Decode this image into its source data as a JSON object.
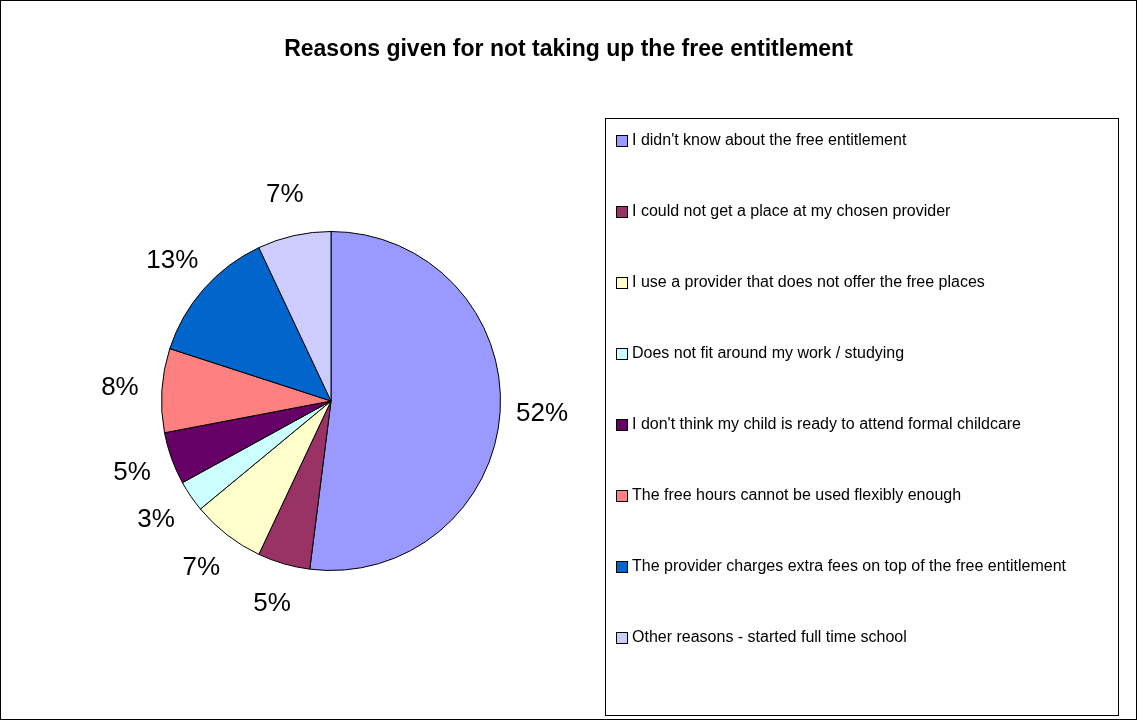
{
  "chart_data": {
    "type": "pie",
    "title": "Reasons given for not taking up the free entitlement",
    "categories": [
      "I didn't know about the free entitlement",
      "I could not get a place at my chosen provider",
      "I use a provider that does not offer the free places",
      "Does not fit around my work / studying",
      "I don't think my child is ready to attend formal childcare",
      "The free hours cannot be used flexibly enough",
      "The provider charges extra fees on top of the free entitlement",
      "Other reasons - started full time school"
    ],
    "values": [
      52,
      5,
      7,
      3,
      5,
      8,
      13,
      7
    ],
    "colors": [
      "#9999ff",
      "#993366",
      "#ffffcc",
      "#ccffff",
      "#660066",
      "#ff8080",
      "#0066cc",
      "#ccccff"
    ],
    "value_labels": [
      "52%",
      "5%",
      "7%",
      "3%",
      "5%",
      "8%",
      "13%",
      "7%"
    ],
    "legend": "right"
  }
}
